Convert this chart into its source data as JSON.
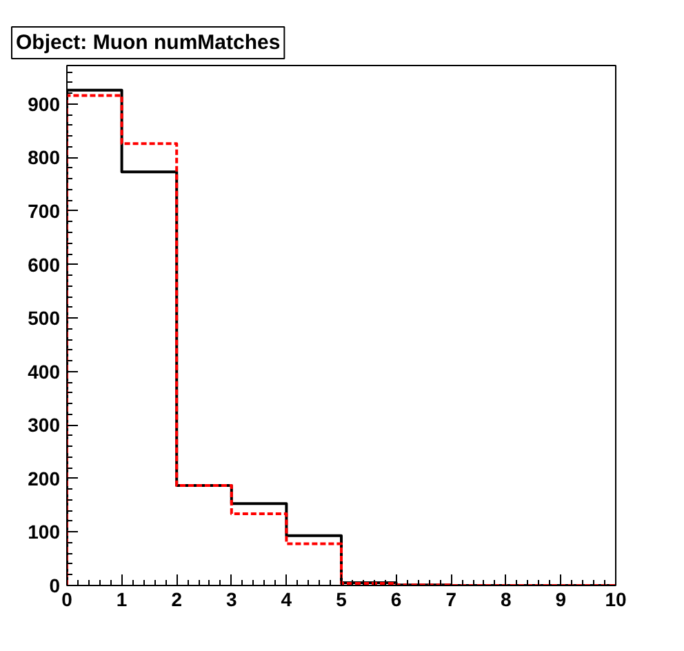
{
  "chart_data": {
    "type": "histogram",
    "title": "Object: Muon numMatches",
    "bins": [
      0,
      1,
      2,
      3,
      4,
      5,
      6,
      7,
      8,
      9,
      10
    ],
    "series": [
      {
        "color": "#000000",
        "line_style": "solid",
        "values": [
          926,
          773,
          187,
          153,
          93,
          5,
          1,
          0,
          0,
          0
        ]
      },
      {
        "color": "#ff0000",
        "line_style": "dashed",
        "values": [
          916,
          826,
          187,
          134,
          78,
          4,
          1,
          0,
          0,
          0
        ]
      }
    ],
    "xlim": [
      0,
      10
    ],
    "ylim": [
      0,
      972
    ],
    "xticks": [
      0,
      1,
      2,
      3,
      4,
      5,
      6,
      7,
      8,
      9,
      10
    ],
    "yticks": [
      0,
      100,
      200,
      300,
      400,
      500,
      600,
      700,
      800,
      900
    ],
    "grid": false
  }
}
